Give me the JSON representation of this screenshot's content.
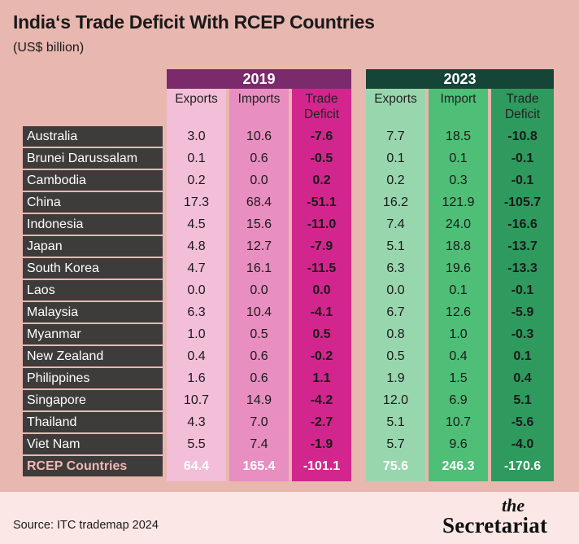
{
  "title": "India‘s Trade Deficit With RCEP Countries",
  "subtitle": "(US$ billion)",
  "years": [
    "2019",
    "2023"
  ],
  "headers_2019": [
    "Exports",
    "Imports",
    "Trade Deficit"
  ],
  "headers_2023": [
    "Exports",
    "Import",
    "Trade Deficit"
  ],
  "colors": {
    "header_2019": "#7b2a6b",
    "header_2023": "#154536",
    "exports_2019": "#f3bed8",
    "imports_2019": "#e98ec1",
    "deficit_2019": "#d2268e",
    "exports_2023": "#98d6ae",
    "imports_2023": "#4fbe77",
    "deficit_2023": "#2e9a5e",
    "row_label_bg": "#3e3b3b"
  },
  "chart_data": {
    "type": "table",
    "title": "India‘s Trade Deficit With RCEP Countries",
    "subtitle": "(US$ billion)",
    "columns": [
      "2019 Exports",
      "2019 Imports",
      "2019 Trade Deficit",
      "2023 Exports",
      "2023 Import",
      "2023 Trade Deficit"
    ],
    "rows": [
      {
        "country": "Australia",
        "values": [
          "3.0",
          "10.6",
          "-7.6",
          "7.7",
          "18.5",
          "-10.8"
        ]
      },
      {
        "country": "Brunei Darussalam",
        "values": [
          "0.1",
          "0.6",
          "-0.5",
          "0.1",
          "0.1",
          "-0.1"
        ]
      },
      {
        "country": "Cambodia",
        "values": [
          "0.2",
          "0.0",
          "0.2",
          "0.2",
          "0.3",
          "-0.1"
        ]
      },
      {
        "country": "China",
        "values": [
          "17.3",
          "68.4",
          "-51.1",
          "16.2",
          "121.9",
          "-105.7"
        ]
      },
      {
        "country": "Indonesia",
        "values": [
          "4.5",
          "15.6",
          "-11.0",
          "7.4",
          "24.0",
          "-16.6"
        ]
      },
      {
        "country": "Japan",
        "values": [
          "4.8",
          "12.7",
          "-7.9",
          "5.1",
          "18.8",
          "-13.7"
        ]
      },
      {
        "country": "South Korea",
        "values": [
          "4.7",
          "16.1",
          "-11.5",
          "6.3",
          "19.6",
          "-13.3"
        ]
      },
      {
        "country": "Laos",
        "values": [
          "0.0",
          "0.0",
          "0.0",
          "0.0",
          "0.1",
          "-0.1"
        ]
      },
      {
        "country": "Malaysia",
        "values": [
          "6.3",
          "10.4",
          "-4.1",
          "6.7",
          "12.6",
          "-5.9"
        ]
      },
      {
        "country": "Myanmar",
        "values": [
          "1.0",
          "0.5",
          "0.5",
          "0.8",
          "1.0",
          "-0.3"
        ]
      },
      {
        "country": "New Zealand",
        "values": [
          "0.4",
          "0.6",
          "-0.2",
          "0.5",
          "0.4",
          "0.1"
        ]
      },
      {
        "country": "Philippines",
        "values": [
          "1.6",
          "0.6",
          "1.1",
          "1.9",
          "1.5",
          "0.4"
        ]
      },
      {
        "country": "Singapore",
        "values": [
          "10.7",
          "14.9",
          "-4.2",
          "12.0",
          "6.9",
          "5.1"
        ]
      },
      {
        "country": "Thailand",
        "values": [
          "4.3",
          "7.0",
          "-2.7",
          "5.1",
          "10.7",
          "-5.6"
        ]
      },
      {
        "country": "Viet Nam",
        "values": [
          "5.5",
          "7.4",
          "-1.9",
          "5.7",
          "9.6",
          "-4.0"
        ]
      }
    ],
    "total": {
      "country": "RCEP Countries",
      "values": [
        "64.4",
        "165.4",
        "-101.1",
        "75.6",
        "246.3",
        "-170.6"
      ]
    }
  },
  "source": "Source: ITC trademap 2024",
  "logo": {
    "small": "the",
    "main": "Secretariat"
  }
}
